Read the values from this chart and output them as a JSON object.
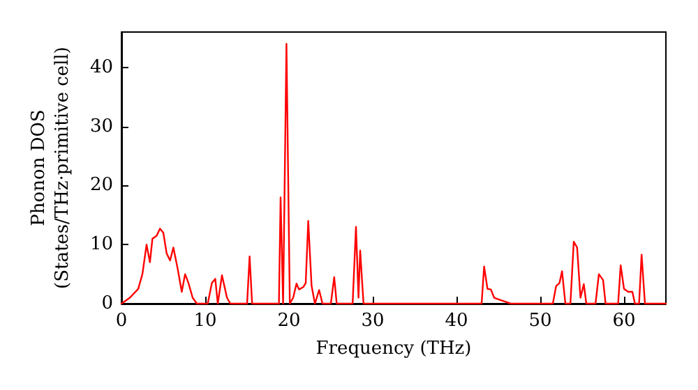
{
  "chart_data": {
    "type": "line",
    "xlabel": "Frequency (THz)",
    "ylabel": "Phonon DOS\n(States/THz·primitive cell)",
    "xlim": [
      0,
      65
    ],
    "ylim": [
      0,
      46
    ],
    "xticks": [
      0,
      10,
      20,
      30,
      40,
      50,
      60
    ],
    "yticks": [
      0,
      10,
      20,
      30,
      40
    ],
    "grid": false,
    "marker": "none",
    "line_style": "solid",
    "series": [
      {
        "color": "#ff0000",
        "x": [
          0,
          1,
          2,
          2.5,
          3,
          3.4,
          3.7,
          4.2,
          4.6,
          5,
          5.4,
          5.8,
          6.2,
          6.7,
          7.2,
          7.6,
          8,
          8.5,
          9,
          10,
          10.3,
          10.8,
          11.2,
          11.5,
          12,
          12.6,
          13,
          15,
          15.3,
          15.6,
          18.8,
          19,
          19.3,
          19.7,
          20.1,
          20.5,
          20.9,
          21.2,
          21.7,
          22,
          22.3,
          22.7,
          23.1,
          23.6,
          24,
          25,
          25.4,
          25.7,
          27.6,
          28,
          28.3,
          28.5,
          28.9,
          43,
          43.3,
          43.7,
          44.1,
          44.5,
          45.5,
          46.5,
          51.5,
          51.9,
          52.3,
          52.6,
          53,
          53.6,
          54,
          54.4,
          54.8,
          55.2,
          55.5,
          56.6,
          57,
          57.5,
          57.8,
          59.3,
          59.6,
          60,
          60.5,
          61,
          61.3,
          61.8,
          62.1,
          62.5,
          65
        ],
        "values": [
          0,
          1,
          2.5,
          5,
          10,
          7,
          11,
          11.5,
          12.7,
          12,
          8.5,
          7.3,
          9.5,
          6,
          2,
          5,
          3.5,
          1,
          0,
          0,
          0,
          3.5,
          4.2,
          0,
          4.8,
          1,
          0,
          0,
          8,
          0,
          0,
          18,
          0,
          44,
          0,
          1,
          3.4,
          2.4,
          2.8,
          3.5,
          14,
          3,
          0,
          2.3,
          0,
          0,
          4.5,
          0,
          0,
          13,
          1,
          9,
          0,
          0,
          6.3,
          2.5,
          2.4,
          1,
          0.5,
          0,
          0,
          3,
          3.5,
          5.5,
          0,
          0,
          10.5,
          9.5,
          1,
          3.3,
          0,
          0,
          5,
          4,
          0,
          0,
          6.5,
          2.5,
          2,
          2,
          0,
          0,
          8.3,
          0,
          0
        ]
      }
    ]
  }
}
